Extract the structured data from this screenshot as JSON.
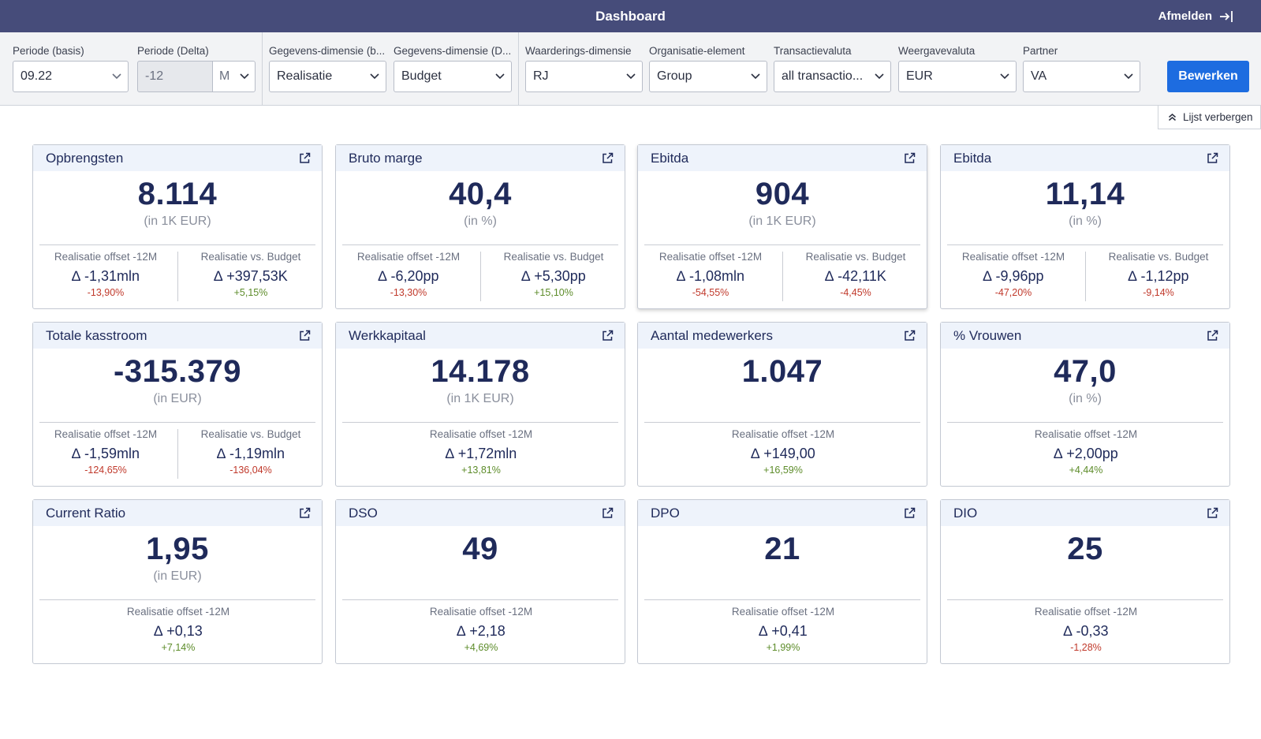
{
  "app": {
    "title": "Dashboard",
    "logout_label": "Afmelden"
  },
  "filters": {
    "periode_basis": {
      "label": "Periode (basis)",
      "value": "09.22"
    },
    "periode_delta": {
      "label": "Periode (Delta)",
      "value": "-12",
      "unit": "M"
    },
    "gegevens_basis": {
      "label": "Gegevens-dimensie (b...",
      "value": "Realisatie"
    },
    "gegevens_delta": {
      "label": "Gegevens-dimensie (D...",
      "value": "Budget"
    },
    "waardering": {
      "label": "Waarderings-dimensie",
      "value": "RJ"
    },
    "organisatie": {
      "label": "Organisatie-element",
      "value": "Group"
    },
    "transactievaluta": {
      "label": "Transactievaluta",
      "value": "all transactio..."
    },
    "weergavevaluta": {
      "label": "Weergavevaluta",
      "value": "EUR"
    },
    "partner": {
      "label": "Partner",
      "value": "VA"
    },
    "edit_label": "Bewerken",
    "hide_list_label": "Lijst verbergen"
  },
  "colors": {
    "header": "#464c7a",
    "accent": "#1d6ce0",
    "negative": "#c0392b",
    "positive": "#5d8c2a"
  },
  "cards": [
    {
      "title": "Opbrengsten",
      "value": "8.114",
      "unit": "(in 1K EUR)",
      "metrics": [
        {
          "label": "Realisatie offset -12M",
          "value": "∆ -1,31mln",
          "pct": "-13,90%",
          "sign": "neg"
        },
        {
          "label": "Realisatie vs. Budget",
          "value": "∆ +397,53K",
          "pct": "+5,15%",
          "sign": "pos"
        }
      ]
    },
    {
      "title": "Bruto marge",
      "value": "40,4",
      "unit": "(in %)",
      "metrics": [
        {
          "label": "Realisatie offset -12M",
          "value": "∆ -6,20pp",
          "pct": "-13,30%",
          "sign": "neg"
        },
        {
          "label": "Realisatie vs. Budget",
          "value": "∆ +5,30pp",
          "pct": "+15,10%",
          "sign": "pos"
        }
      ]
    },
    {
      "title": "Ebitda",
      "value": "904",
      "unit": "(in 1K EUR)",
      "metrics": [
        {
          "label": "Realisatie offset -12M",
          "value": "∆ -1,08mln",
          "pct": "-54,55%",
          "sign": "neg"
        },
        {
          "label": "Realisatie vs. Budget",
          "value": "∆ -42,11K",
          "pct": "-4,45%",
          "sign": "neg"
        }
      ]
    },
    {
      "title": "Ebitda",
      "value": "11,14",
      "unit": "(in %)",
      "metrics": [
        {
          "label": "Realisatie offset -12M",
          "value": "∆ -9,96pp",
          "pct": "-47,20%",
          "sign": "neg"
        },
        {
          "label": "Realisatie vs. Budget",
          "value": "∆ -1,12pp",
          "pct": "-9,14%",
          "sign": "neg"
        }
      ]
    },
    {
      "title": "Totale kasstroom",
      "value": "-315.379",
      "unit": "(in EUR)",
      "metrics": [
        {
          "label": "Realisatie offset -12M",
          "value": "∆ -1,59mln",
          "pct": "-124,65%",
          "sign": "neg"
        },
        {
          "label": "Realisatie vs. Budget",
          "value": "∆ -1,19mln",
          "pct": "-136,04%",
          "sign": "neg"
        }
      ]
    },
    {
      "title": "Werkkapitaal",
      "value": "14.178",
      "unit": "(in 1K EUR)",
      "metrics": [
        {
          "label": "Realisatie offset -12M",
          "value": "∆ +1,72mln",
          "pct": "+13,81%",
          "sign": "pos"
        }
      ]
    },
    {
      "title": "Aantal medewerkers",
      "value": "1.047",
      "unit": "",
      "metrics": [
        {
          "label": "Realisatie offset -12M",
          "value": "∆ +149,00",
          "pct": "+16,59%",
          "sign": "pos"
        }
      ]
    },
    {
      "title": "% Vrouwen",
      "value": "47,0",
      "unit": "(in %)",
      "metrics": [
        {
          "label": "Realisatie offset -12M",
          "value": "∆ +2,00pp",
          "pct": "+4,44%",
          "sign": "pos"
        }
      ]
    },
    {
      "title": "Current Ratio",
      "value": "1,95",
      "unit": "(in EUR)",
      "metrics": [
        {
          "label": "Realisatie offset -12M",
          "value": "∆ +0,13",
          "pct": "+7,14%",
          "sign": "pos"
        }
      ]
    },
    {
      "title": "DSO",
      "value": "49",
      "unit": "",
      "metrics": [
        {
          "label": "Realisatie offset -12M",
          "value": "∆ +2,18",
          "pct": "+4,69%",
          "sign": "pos"
        }
      ]
    },
    {
      "title": "DPO",
      "value": "21",
      "unit": "",
      "metrics": [
        {
          "label": "Realisatie offset -12M",
          "value": "∆ +0,41",
          "pct": "+1,99%",
          "sign": "pos"
        }
      ]
    },
    {
      "title": "DIO",
      "value": "25",
      "unit": "",
      "metrics": [
        {
          "label": "Realisatie offset -12M",
          "value": "∆ -0,33",
          "pct": "-1,28%",
          "sign": "neg"
        }
      ]
    }
  ]
}
